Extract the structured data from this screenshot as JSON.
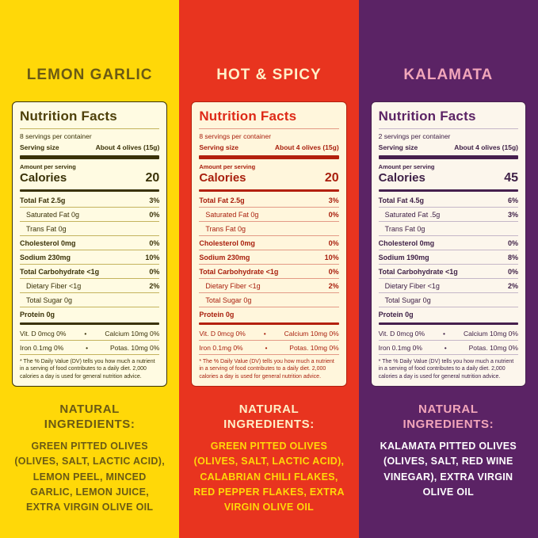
{
  "panels": [
    {
      "title": "LEMON GARLIC",
      "colors": {
        "bg": "#FFD808",
        "title": "#6B5A14",
        "card_bg": "#FFFBE2",
        "card_border": "#3A3208",
        "card_text": "#3A3208",
        "card_accent": "#4E4009",
        "rule": "#C4B35E",
        "ing_title": "#6B5A14",
        "ing_text": "#6B5A14"
      },
      "nutrition": {
        "title": "Nutrition Facts",
        "servings_per_container": "8 servings per container",
        "serving_size_label": "Serving size",
        "serving_size_value": "About 4 olives (15g)",
        "amount_per_serving": "Amount per serving",
        "calories_label": "Calories",
        "calories_value": "20",
        "rows": [
          {
            "label": "Total Fat 2.5g",
            "dv": "3%"
          },
          {
            "label": "Saturated Fat 0g",
            "dv": "0%"
          },
          {
            "label": "Trans Fat 0g",
            "dv": ""
          },
          {
            "label": "Cholesterol 0mg",
            "dv": "0%"
          },
          {
            "label": "Sodium 230mg",
            "dv": "10%"
          },
          {
            "label": "Total Carbohydrate <1g",
            "dv": "0%"
          },
          {
            "label": "Dietary Fiber <1g",
            "dv": "2%"
          },
          {
            "label": "Total Sugar 0g",
            "dv": ""
          },
          {
            "label": "Protein 0g",
            "dv": ""
          }
        ],
        "micros": [
          {
            "left": "Vit. D 0mcg 0%",
            "sep": "•",
            "right": "Calcium 10mg 0%"
          },
          {
            "left": "Iron 0.1mg 0%",
            "sep": "•",
            "right": "Potas. 10mg 0%"
          }
        ],
        "footnote": "* The % Daily Value (DV) tells you how much a nutrient in a serving of food contributes to a daily diet. 2,000 calories a day is used for general nutrition advice."
      },
      "ingredients_heading": "NATURAL INGREDIENTS:",
      "ingredients": "GREEN PITTED OLIVES (OLIVES, SALT, LACTIC ACID), LEMON PEEL, MINCED GARLIC, LEMON JUICE, EXTRA VIRGIN OLIVE OIL"
    },
    {
      "title": "HOT & SPICY",
      "colors": {
        "bg": "#E8341F",
        "title": "#FFEFC8",
        "card_bg": "#FFF6DC",
        "card_border": "#B3200D",
        "card_text": "#A81F0D",
        "card_accent": "#DE2917",
        "rule": "#E39A86",
        "ing_title": "#FFEFC8",
        "ing_text": "#FFD808"
      },
      "nutrition": {
        "title": "Nutrition Facts",
        "servings_per_container": "8 servings per container",
        "serving_size_label": "Serving size",
        "serving_size_value": "About 4 olives (15g)",
        "amount_per_serving": "Amount per serving",
        "calories_label": "Calories",
        "calories_value": "20",
        "rows": [
          {
            "label": "Total Fat 2.5g",
            "dv": "3%"
          },
          {
            "label": "Saturated Fat 0g",
            "dv": "0%"
          },
          {
            "label": "Trans Fat 0g",
            "dv": ""
          },
          {
            "label": "Cholesterol 0mg",
            "dv": "0%"
          },
          {
            "label": "Sodium 230mg",
            "dv": "10%"
          },
          {
            "label": "Total Carbohydrate <1g",
            "dv": "0%"
          },
          {
            "label": "Dietary Fiber <1g",
            "dv": "2%"
          },
          {
            "label": "Total Sugar 0g",
            "dv": ""
          },
          {
            "label": "Protein 0g",
            "dv": ""
          }
        ],
        "micros": [
          {
            "left": "Vit. D 0mcg 0%",
            "sep": "•",
            "right": "Calcium 10mg 0%"
          },
          {
            "left": "Iron 0.1mg 0%",
            "sep": "•",
            "right": "Potas. 10mg 0%"
          }
        ],
        "footnote": "* The % Daily Value (DV) tells you how much a nutrient in a serving of food contributes to a daily diet. 2,000 calories a day is used for general nutrition advice."
      },
      "ingredients_heading": "NATURAL INGREDIENTS:",
      "ingredients": "GREEN PITTED OLIVES (OLIVES, SALT, LACTIC ACID), CALABRIAN CHILI FLAKES, RED PEPPER FLAKES, EXTRA VIRGIN OLIVE OIL"
    },
    {
      "title": "KALAMATA",
      "colors": {
        "bg": "#5B2365",
        "title": "#F2A6BA",
        "card_bg": "#FCF6EC",
        "card_border": "#46204E",
        "card_text": "#3F2147",
        "card_accent": "#5B2365",
        "rule": "#C5B7C8",
        "ing_title": "#F2A6BA",
        "ing_text": "#FFFFFF"
      },
      "nutrition": {
        "title": "Nutrition Facts",
        "servings_per_container": "2 servings per container",
        "serving_size_label": "Serving size",
        "serving_size_value": "About 4 olives (15g)",
        "amount_per_serving": "Amount per serving",
        "calories_label": "Calories",
        "calories_value": "45",
        "rows": [
          {
            "label": "Total Fat 4.5g",
            "dv": "6%"
          },
          {
            "label": "Saturated Fat .5g",
            "dv": "3%"
          },
          {
            "label": "Trans Fat 0g",
            "dv": ""
          },
          {
            "label": "Cholesterol 0mg",
            "dv": "0%"
          },
          {
            "label": "Sodium 190mg",
            "dv": "8%"
          },
          {
            "label": "Total Carbohydrate <1g",
            "dv": "0%"
          },
          {
            "label": "Dietary Fiber <1g",
            "dv": "2%"
          },
          {
            "label": "Total Sugar 0g",
            "dv": ""
          },
          {
            "label": "Protein 0g",
            "dv": ""
          }
        ],
        "micros": [
          {
            "left": "Vit. D 0mcg 0%",
            "sep": "•",
            "right": "Calcium 10mg 0%"
          },
          {
            "left": "Iron 0.1mg 0%",
            "sep": "•",
            "right": "Potas. 10mg 0%"
          }
        ],
        "footnote": "* The % Daily Value (DV) tells you how much a nutrient in a serving of food contributes to a daily diet. 2,000 calories a day is used for general nutrition advice."
      },
      "ingredients_heading": "NATURAL INGREDIENTS:",
      "ingredients": "KALAMATA PITTED OLIVES (OLIVES, SALT, RED WINE VINEGAR), EXTRA VIRGIN OLIVE OIL"
    }
  ]
}
